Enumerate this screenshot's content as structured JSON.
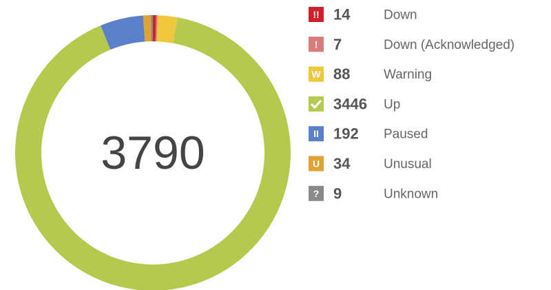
{
  "chart_data": {
    "type": "donut",
    "total": 3790,
    "categories": [
      "Down",
      "Down (Acknowledged)",
      "Warning",
      "Up",
      "Paused",
      "Unusual",
      "Unknown"
    ],
    "values": [
      14,
      7,
      88,
      3446,
      192,
      34,
      9
    ],
    "icons": [
      "!!",
      "!",
      "W",
      null,
      "II",
      "U",
      "?"
    ],
    "colors": [
      "#d0212a",
      "#d77b7b",
      "#efc73a",
      "#b6c94e",
      "#5b7fc9",
      "#e0a232",
      "#8a8a8a"
    ]
  }
}
